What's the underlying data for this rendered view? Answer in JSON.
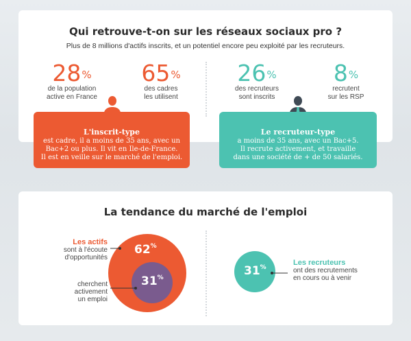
{
  "section1": {
    "title": "Qui retrouve-t-on sur les réseaux sociaux pro ?",
    "subtitle": "Plus de 8 millions d'actifs inscrits, et un potentiel encore peu exploité par les recruteurs.",
    "stats": [
      {
        "value": "28",
        "unit": "%",
        "line1": "de la population",
        "line2": "active en France"
      },
      {
        "value": "65",
        "unit": "%",
        "line1": "des cadres",
        "line2": "les utilisent"
      },
      {
        "value": "26",
        "unit": "%",
        "line1": "des recruteurs",
        "line2": "sont inscrits"
      },
      {
        "value": "8",
        "unit": "%",
        "line1": "recrutent",
        "line2": "sur les RSP"
      }
    ],
    "card_inscrit": {
      "title": "L'inscrit-type",
      "lines": [
        "est cadre, il a moins de 35 ans, avec un",
        "Bac+2 ou plus. Il vit en Ile-de-France.",
        "Il est en veille sur le marché de l'emploi."
      ]
    },
    "card_recruteur": {
      "title": "Le recruteur-type",
      "lines": [
        "a moins de 35 ans, avec un Bac+5.",
        "Il recrute activement, et travaille",
        "dans une société de + de 50 salariés."
      ]
    }
  },
  "section2": {
    "title": "La tendance du marché de l'emploi",
    "actifs": {
      "label": "Les actifs",
      "line1": "sont à l'écoute",
      "line2": "d'opportunités",
      "outer_value": "62",
      "inner_value": "31",
      "unit": "%",
      "inner_line1": "cherchent",
      "inner_line2": "activement",
      "inner_line3": "un emploi"
    },
    "recruteurs": {
      "label": "Les recruteurs",
      "line1": "ont des recrutements",
      "line2": "en cours ou à venir",
      "value": "31",
      "unit": "%"
    }
  },
  "colors": {
    "orange": "#ec5a32",
    "teal": "#4cc2b1",
    "purple": "#7a5b8e"
  }
}
